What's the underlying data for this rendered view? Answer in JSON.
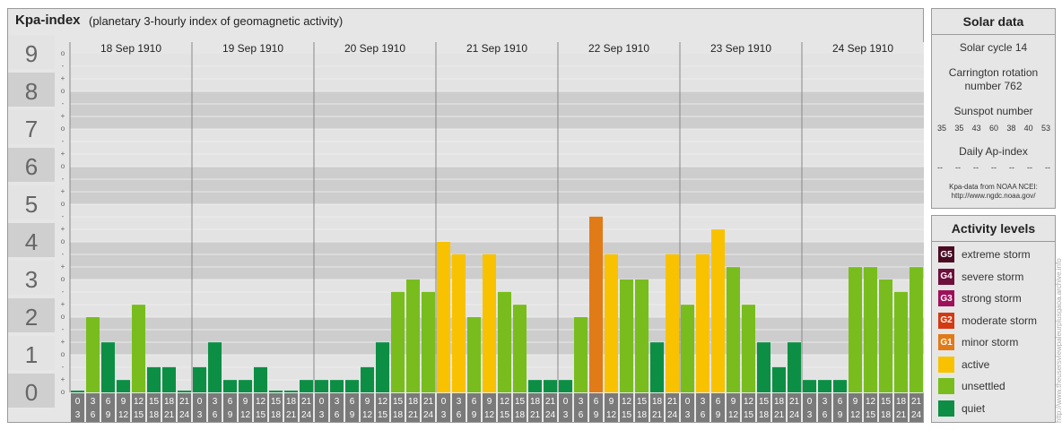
{
  "header": {
    "title": "Kpa-index",
    "subtitle": "(planetary 3-hourly index of geomagnetic activity)"
  },
  "chart_data": {
    "type": "bar",
    "ylim": [
      0,
      9
    ],
    "y_ticks": [
      "0",
      "1",
      "2",
      "3",
      "4",
      "5",
      "6",
      "7",
      "8",
      "9"
    ],
    "minor_ticks": [
      "o",
      "+",
      "-"
    ],
    "days": [
      "18 Sep 1910",
      "19 Sep 1910",
      "20 Sep 1910",
      "21 Sep 1910",
      "22 Sep 1910",
      "23 Sep 1910",
      "24 Sep 1910"
    ],
    "interval_start": [
      "0",
      "3",
      "6",
      "9",
      "12",
      "15",
      "18",
      "21"
    ],
    "interval_end": [
      "3",
      "6",
      "9",
      "12",
      "15",
      "18",
      "21",
      "24"
    ],
    "values": [
      0.0,
      2.0,
      1.33,
      0.33,
      2.33,
      0.67,
      0.67,
      0.0,
      0.67,
      1.33,
      0.33,
      0.33,
      0.67,
      0.0,
      0.0,
      0.33,
      0.33,
      0.33,
      0.33,
      0.67,
      1.33,
      2.67,
      3.0,
      2.67,
      4.0,
      3.67,
      2.0,
      3.67,
      2.67,
      2.33,
      0.33,
      0.33,
      0.33,
      2.0,
      4.67,
      3.67,
      3.0,
      3.0,
      1.33,
      3.67,
      2.33,
      3.67,
      4.33,
      3.33,
      2.33,
      1.33,
      0.67,
      1.33,
      0.33,
      0.33,
      0.33,
      3.33,
      3.33,
      3.0,
      2.67,
      3.33
    ],
    "levels": [
      {
        "code": "G5",
        "label": "extreme storm",
        "color": "#4a0b22"
      },
      {
        "code": "G4",
        "label": "severe storm",
        "color": "#6e0f3c"
      },
      {
        "code": "G3",
        "label": "strong storm",
        "color": "#a0105a"
      },
      {
        "code": "G2",
        "label": "moderate storm",
        "color": "#d33a12"
      },
      {
        "code": "G1",
        "label": "minor storm",
        "color": "#e07b18"
      },
      {
        "code": "",
        "label": "active",
        "color": "#f8c200"
      },
      {
        "code": "",
        "label": "unsettled",
        "color": "#78bd1d"
      },
      {
        "code": "",
        "label": "quiet",
        "color": "#0c8f44"
      }
    ]
  },
  "solar": {
    "heading": "Solar data",
    "cycle": "Solar cycle 14",
    "carrington_line1": "Carrington rotation",
    "carrington_line2": "number 762",
    "sunspot_label": "Sunspot number",
    "sunspot_values": [
      "35",
      "35",
      "43",
      "60",
      "38",
      "40",
      "53"
    ],
    "ap_label": "Daily Ap-index",
    "ap_values": [
      "--",
      "--",
      "--",
      "--",
      "--",
      "--",
      "--"
    ],
    "noaa_line1": "Kpa-data from NOAA NCEI:",
    "noaa_line2": "http://www.ngdc.noaa.gov/"
  },
  "activity": {
    "heading": "Activity levels"
  },
  "credit": "http://www.theusersviewpaleurplusgaoa.archive.info"
}
